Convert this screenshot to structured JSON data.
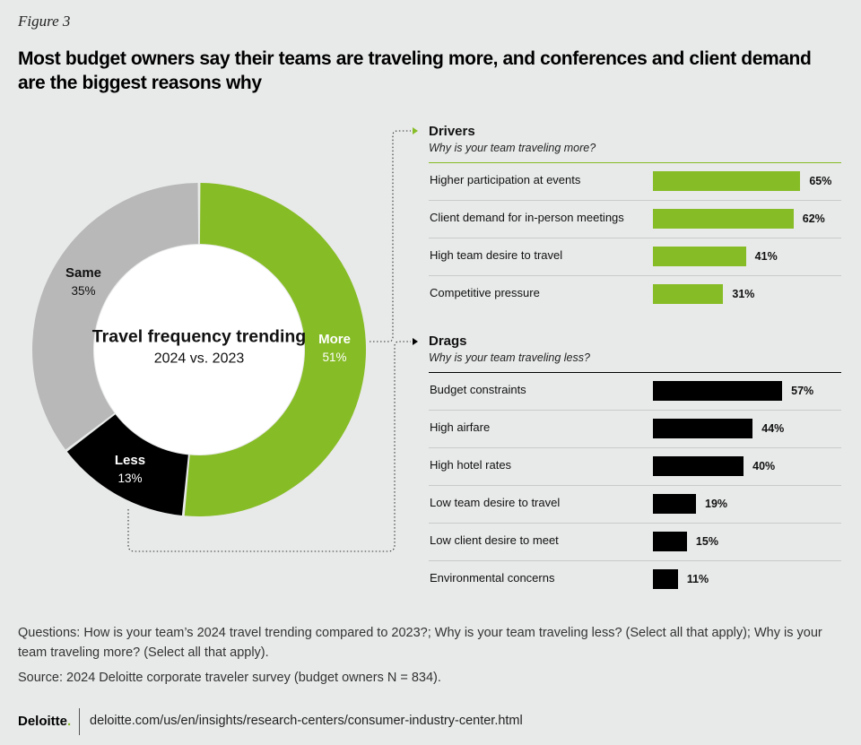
{
  "figure_label": "Figure 3",
  "title": "Most budget owners say their teams are traveling more, and conferences and client demand are the biggest reasons why",
  "colors": {
    "more": "#86bc25",
    "same": "#b8b8b8",
    "less": "#000000",
    "drivers_bar": "#86bc25",
    "drags_bar": "#000000",
    "background": "#e8e9e9"
  },
  "chart_data": [
    {
      "type": "pie",
      "title": "Travel frequency trending",
      "subtitle": "2024 vs. 2023",
      "slices": [
        {
          "name": "More",
          "value": 51,
          "label": "51%"
        },
        {
          "name": "Less",
          "value": 13,
          "label": "13%"
        },
        {
          "name": "Same",
          "value": 35,
          "label": "35%"
        }
      ]
    },
    {
      "type": "bar",
      "title": "Drivers",
      "subtitle": "Why is your team traveling more?",
      "categories": [
        "Higher participation at events",
        "Client demand for in-person meetings",
        "High team desire to travel",
        "Competitive pressure"
      ],
      "values": [
        65,
        62,
        41,
        31
      ],
      "value_labels": [
        "65%",
        "62%",
        "41%",
        "31%"
      ]
    },
    {
      "type": "bar",
      "title": "Drags",
      "subtitle": "Why is your team traveling less?",
      "categories": [
        "Budget constraints",
        "High airfare",
        "High hotel rates",
        "Low team desire to travel",
        "Low client desire to meet",
        "Environmental concerns"
      ],
      "values": [
        57,
        44,
        40,
        19,
        15,
        11
      ],
      "value_labels": [
        "57%",
        "44%",
        "40%",
        "19%",
        "15%",
        "11%"
      ]
    }
  ],
  "footer": {
    "questions": "Questions: How is your team’s 2024 travel trending compared to 2023?; Why is your team traveling less? (Select all that apply); Why is your team traveling more? (Select all that apply).",
    "source": "Source: 2024 Deloitte corporate traveler survey (budget owners N = 834).",
    "brand": "Deloitte",
    "brand_dot": ".",
    "url": "deloitte.com/us/en/insights/research-centers/consumer-industry-center.html"
  }
}
